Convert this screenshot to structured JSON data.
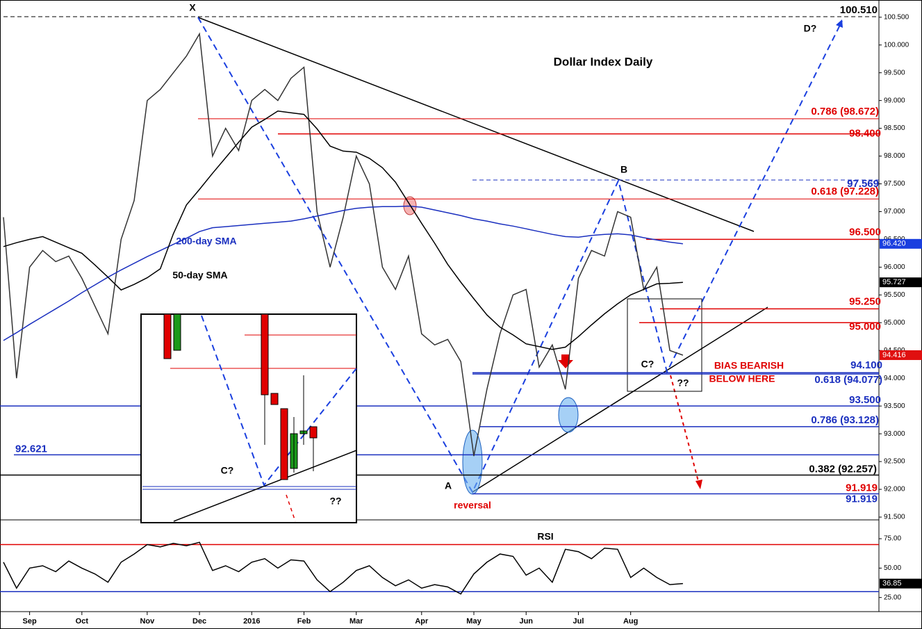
{
  "chart_data": [
    {
      "type": "line",
      "title": "Dollar Index Daily",
      "categories": [
        null,
        null,
        "Sep",
        null,
        null,
        null,
        "Oct",
        null,
        null,
        null,
        null,
        "Nov",
        null,
        null,
        null,
        "Dec",
        null,
        null,
        null,
        "2016",
        null,
        null,
        null,
        "Feb",
        null,
        null,
        null,
        "Mar",
        null,
        null,
        null,
        null,
        "Apr",
        null,
        null,
        null,
        "May",
        null,
        null,
        null,
        "Jun",
        null,
        null,
        null,
        "Jul",
        null,
        null,
        null,
        "Aug",
        null,
        null,
        null,
        null,
        null,
        null,
        null,
        null,
        null,
        null,
        null,
        null,
        null,
        null,
        null,
        null,
        null,
        null,
        null
      ],
      "series": [
        {
          "color": "#333333",
          "values": [
            96.9,
            94.0,
            96.0,
            96.3,
            96.1,
            96.2,
            95.8,
            95.3,
            94.8,
            96.5,
            97.2,
            99.0,
            99.2,
            99.5,
            99.8,
            100.2,
            98.0,
            98.5,
            98.1,
            99.0,
            99.2,
            99.0,
            99.4,
            99.6,
            97.0,
            96.0,
            96.9,
            98.0,
            97.5,
            96.0,
            95.6,
            96.2,
            94.8,
            94.6,
            94.7,
            94.3,
            92.6,
            93.8,
            94.8,
            95.5,
            95.6,
            94.2,
            94.6,
            93.8,
            95.8,
            96.3,
            96.2,
            97.0,
            96.9,
            95.6,
            96.0,
            94.5,
            94.416,
            null,
            null,
            null,
            null,
            null,
            null,
            null,
            null,
            null,
            null,
            null,
            null,
            null,
            null,
            null
          ]
        },
        {
          "name": "200-day SMA",
          "color": "#1a2fbf",
          "values": [
            94.68,
            94.82,
            94.97,
            95.11,
            95.25,
            95.39,
            95.54,
            95.68,
            95.82,
            95.95,
            96.07,
            96.19,
            96.3,
            96.41,
            96.52,
            96.64,
            96.71,
            96.73,
            96.75,
            96.77,
            96.79,
            96.81,
            96.83,
            96.87,
            96.92,
            96.97,
            97.02,
            97.06,
            97.08,
            97.09,
            97.09,
            97.1,
            97.08,
            97.03,
            96.98,
            96.93,
            96.87,
            96.83,
            96.78,
            96.74,
            96.69,
            96.64,
            96.59,
            96.55,
            96.54,
            96.57,
            96.59,
            96.6,
            96.58,
            96.53,
            96.49,
            96.45,
            96.42,
            null,
            null,
            null,
            null,
            null,
            null,
            null,
            null,
            null,
            null,
            null,
            null,
            null,
            null,
            null
          ]
        },
        {
          "name": "50-day SMA",
          "color": "#000000",
          "values": [
            96.37,
            96.44,
            96.5,
            96.55,
            96.45,
            96.35,
            96.25,
            96.04,
            95.82,
            95.59,
            95.69,
            95.81,
            95.97,
            96.6,
            97.12,
            97.4,
            97.69,
            97.97,
            98.25,
            98.52,
            98.66,
            98.81,
            98.78,
            98.75,
            98.49,
            98.18,
            98.09,
            98.07,
            97.96,
            97.79,
            97.53,
            97.16,
            96.79,
            96.43,
            96.05,
            95.73,
            95.43,
            95.14,
            94.92,
            94.78,
            94.62,
            94.57,
            94.52,
            94.56,
            94.75,
            94.96,
            95.16,
            95.34,
            95.5,
            95.6,
            95.7,
            95.71,
            95.727,
            null,
            null,
            null,
            null,
            null,
            null,
            null,
            null,
            null,
            null,
            null,
            null,
            null,
            null,
            null
          ]
        }
      ],
      "ylim": [
        91.45,
        100.81
      ],
      "yticks": [
        {
          "value": 91.5,
          "label": "91.500"
        },
        {
          "value": 92,
          "label": "92.000"
        },
        {
          "value": 92.5,
          "label": "92.500"
        },
        {
          "value": 93,
          "label": "93.000"
        },
        {
          "value": 93.5,
          "label": "93.500"
        },
        {
          "value": 94,
          "label": "94.000"
        },
        {
          "value": 94.5,
          "label": "94.500"
        },
        {
          "value": 95,
          "label": "95.000"
        },
        {
          "value": 95.5,
          "label": "95.500"
        },
        {
          "value": 96,
          "label": "96.000"
        },
        {
          "value": 96.5,
          "label": "96.500"
        },
        {
          "value": 97,
          "label": "97.000"
        },
        {
          "value": 97.5,
          "label": "97.500"
        },
        {
          "value": 98,
          "label": "98.000"
        },
        {
          "value": 98.5,
          "label": "98.500"
        },
        {
          "value": 99,
          "label": "99.000"
        },
        {
          "value": 99.5,
          "label": "99.500"
        },
        {
          "value": 100,
          "label": "100.000"
        },
        {
          "value": 100.5,
          "label": "100.500"
        }
      ],
      "levels": [
        {
          "value": 100.51,
          "label": "100.510",
          "color": "#000000"
        },
        {
          "value": 98.672,
          "label": "0.786 (98.672)",
          "color": "#e00000"
        },
        {
          "value": 98.4,
          "label": "98.400",
          "color": "#e00000"
        },
        {
          "value": 97.569,
          "label": "97.569",
          "color": "#1a2fbf"
        },
        {
          "value": 97.228,
          "label": "0.618 (97.228)",
          "color": "#e00000"
        },
        {
          "value": 96.5,
          "label": "96.500",
          "color": "#e00000"
        },
        {
          "value": 95.25,
          "label": "95.250",
          "color": "#e00000"
        },
        {
          "value": 95.0,
          "label": "95.000",
          "color": "#e00000"
        },
        {
          "value": 94.1,
          "label": "94.100",
          "color": "#1a2fbf"
        },
        {
          "value": 94.077,
          "label": "0.618 (94.077)",
          "color": "#1a2fbf"
        },
        {
          "value": 93.5,
          "label": "93.500",
          "color": "#1a2fbf"
        },
        {
          "value": 93.128,
          "label": "0.786 (93.128)",
          "color": "#1a2fbf"
        },
        {
          "value": 92.621,
          "label": "92.621",
          "color": "#1a2fbf"
        },
        {
          "value": 92.257,
          "label": "0.382 (92.257)",
          "color": "#000000"
        },
        {
          "value": 91.919,
          "label": "91.919",
          "color": "#e00000"
        },
        {
          "value": 91.919,
          "label": "91.919",
          "color": "#1a2fbf"
        }
      ],
      "price_tags": [
        {
          "value": 96.42,
          "label": "96.420",
          "color": "#1a3fdf"
        },
        {
          "value": 95.727,
          "label": "95.727",
          "color": "#000000"
        },
        {
          "value": 94.416,
          "label": "94.416",
          "color": "#e01010"
        }
      ],
      "annotations": [
        "X",
        "A",
        "B",
        "C?",
        "D?",
        "??",
        "reversal",
        "200-day SMA",
        "50-day SMA",
        "BIAS BEARISH",
        "BELOW HERE"
      ],
      "inset_labels": [
        "C?",
        "??"
      ]
    },
    {
      "type": "line",
      "title": "RSI",
      "series": [
        {
          "color": "#000000",
          "values": [
            55,
            33,
            50,
            52,
            47,
            56,
            50,
            45,
            38,
            55,
            62,
            70,
            68,
            71,
            69,
            72,
            48,
            52,
            47,
            55,
            58,
            50,
            57,
            56,
            40,
            30,
            38,
            48,
            52,
            42,
            35,
            40,
            33,
            36,
            34,
            28,
            45,
            55,
            62,
            60,
            44,
            50,
            38,
            66,
            64,
            58,
            67,
            66,
            42,
            50,
            42,
            36,
            36.85,
            null,
            null,
            null,
            null,
            null,
            null,
            null,
            null,
            null,
            null,
            null,
            null,
            null,
            null,
            null
          ]
        }
      ],
      "ylim": [
        13,
        91
      ],
      "yticks": [
        {
          "value": 25,
          "label": "25.00"
        },
        {
          "value": 50,
          "label": "50.00"
        },
        {
          "value": 75,
          "label": "75.00"
        }
      ],
      "levels": [
        {
          "value": 70,
          "color": "#e00000"
        },
        {
          "value": 30,
          "color": "#1a2fbf"
        }
      ],
      "price_tags": [
        {
          "value": 36.85,
          "label": "36.85",
          "color": "#000000"
        }
      ]
    }
  ]
}
